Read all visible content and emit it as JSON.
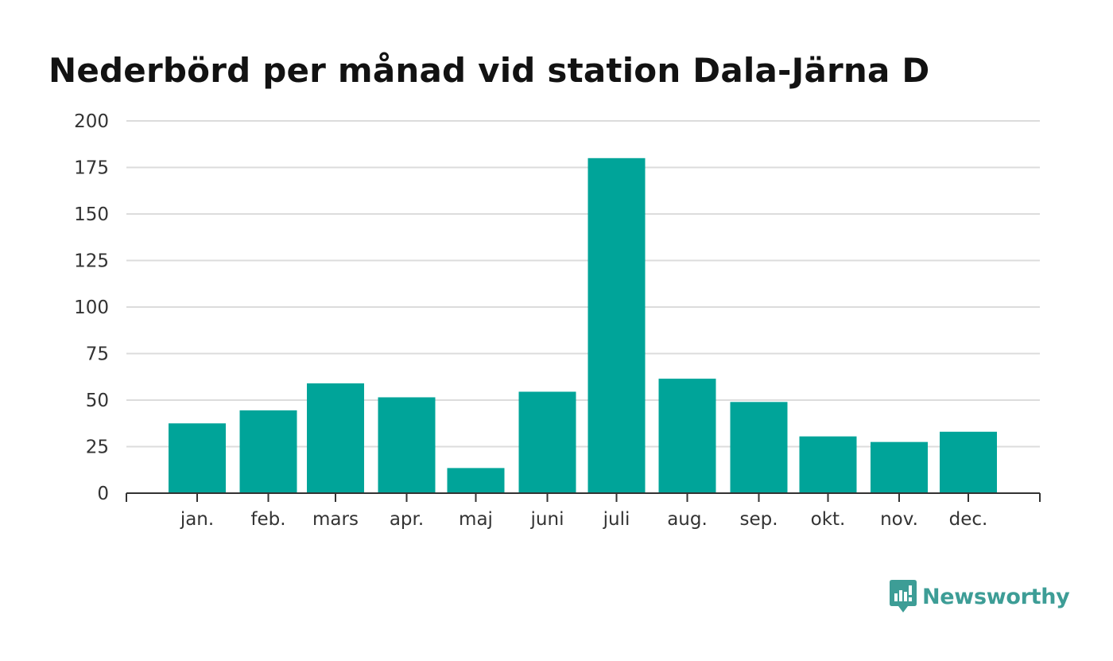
{
  "chart_data": {
    "type": "bar",
    "title": "Nederbörd per månad vid station Dala-Järna D",
    "xlabel": "",
    "ylabel": "",
    "categories": [
      "jan.",
      "feb.",
      "mars",
      "apr.",
      "maj",
      "juni",
      "juli",
      "aug.",
      "sep.",
      "okt.",
      "nov.",
      "dec."
    ],
    "values": [
      37.5,
      44.5,
      59,
      51.5,
      13.5,
      54.5,
      180,
      61.5,
      49,
      30.5,
      27.5,
      33
    ],
    "ylim": [
      0,
      200
    ],
    "yticks": [
      0,
      25,
      50,
      75,
      100,
      125,
      150,
      175,
      200
    ],
    "grid": true,
    "legend": "none",
    "bar_color": "#00a499"
  },
  "brand": {
    "name": "Newsworthy",
    "icon": "bar-chart-speech-bubble-icon",
    "color": "#3d9d96"
  }
}
